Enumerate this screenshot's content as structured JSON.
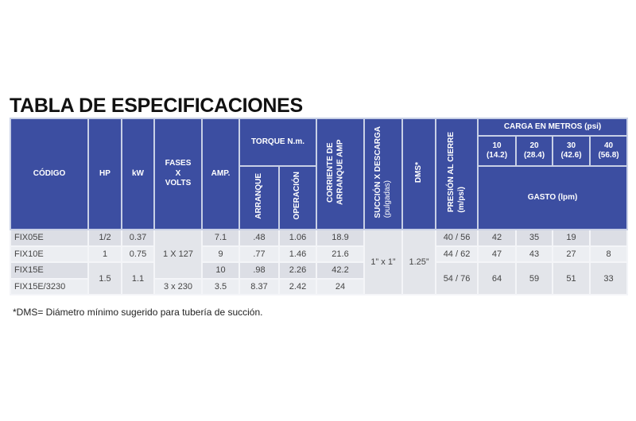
{
  "title": "TABLA DE ESPECIFICACIONES",
  "headers": {
    "codigo": "CÓDIGO",
    "hp": "HP",
    "kw": "kW",
    "fases": "FASES X VOLTS",
    "amp": "AMP.",
    "torque": "TORQUE N.m.",
    "arranque": "ARRANQUE",
    "operacion": "OPERACIÓN",
    "corriente": "CORRIENTE DE ARRANQUE AMP",
    "succion": "SUCCIÓN X DESCARGA",
    "succion_unit": "(pulgadas)",
    "dms": "DMS*",
    "presion": "PRESIÓN AL CIERRE",
    "presion_unit": "(m/psi)",
    "carga": "CARGA EN METROS (psi)",
    "carga_cols": [
      {
        "m": "10",
        "psi": "(14.2)"
      },
      {
        "m": "20",
        "psi": "(28.4)"
      },
      {
        "m": "30",
        "psi": "(42.6)"
      },
      {
        "m": "40",
        "psi": "(56.8)"
      }
    ],
    "gasto": "GASTO (lpm)"
  },
  "rows": [
    {
      "codigo": "FIX05E",
      "hp": "1/2",
      "kw": "0.37",
      "amp": "7.1",
      "arranque": ".48",
      "operacion": "1.06",
      "corriente": "18.9",
      "presion": "40 / 56",
      "gasto": [
        "42",
        "35",
        "19",
        ""
      ]
    },
    {
      "codigo": "FIX10E",
      "hp": "1",
      "kw": "0.75",
      "amp": "9",
      "arranque": ".77",
      "operacion": "1.46",
      "corriente": "21.6",
      "presion": "44 / 62",
      "gasto": [
        "47",
        "43",
        "27",
        "8"
      ]
    },
    {
      "codigo": "FIX15E",
      "hp": "1.5",
      "kw": "1.1",
      "amp": "10",
      "arranque": ".98",
      "operacion": "2.26",
      "corriente": "42.2",
      "presion": "54 / 76",
      "gasto": [
        "64",
        "59",
        "51",
        "33"
      ]
    },
    {
      "codigo": "FIX15E/3230",
      "amp": "3.5",
      "arranque": "8.37",
      "operacion": "2.42",
      "corriente": "24"
    }
  ],
  "merged": {
    "fases_1": "1 X 127",
    "fases_2": "3 x 230",
    "succion": "1” x 1”",
    "dms": "1.25”"
  },
  "note": "*DMS= Diámetro mínimo sugerido para tubería de succión.",
  "colors": {
    "header": "#3c4ea1",
    "row_dark": "#dcdee5",
    "row_light": "#eceef2"
  }
}
